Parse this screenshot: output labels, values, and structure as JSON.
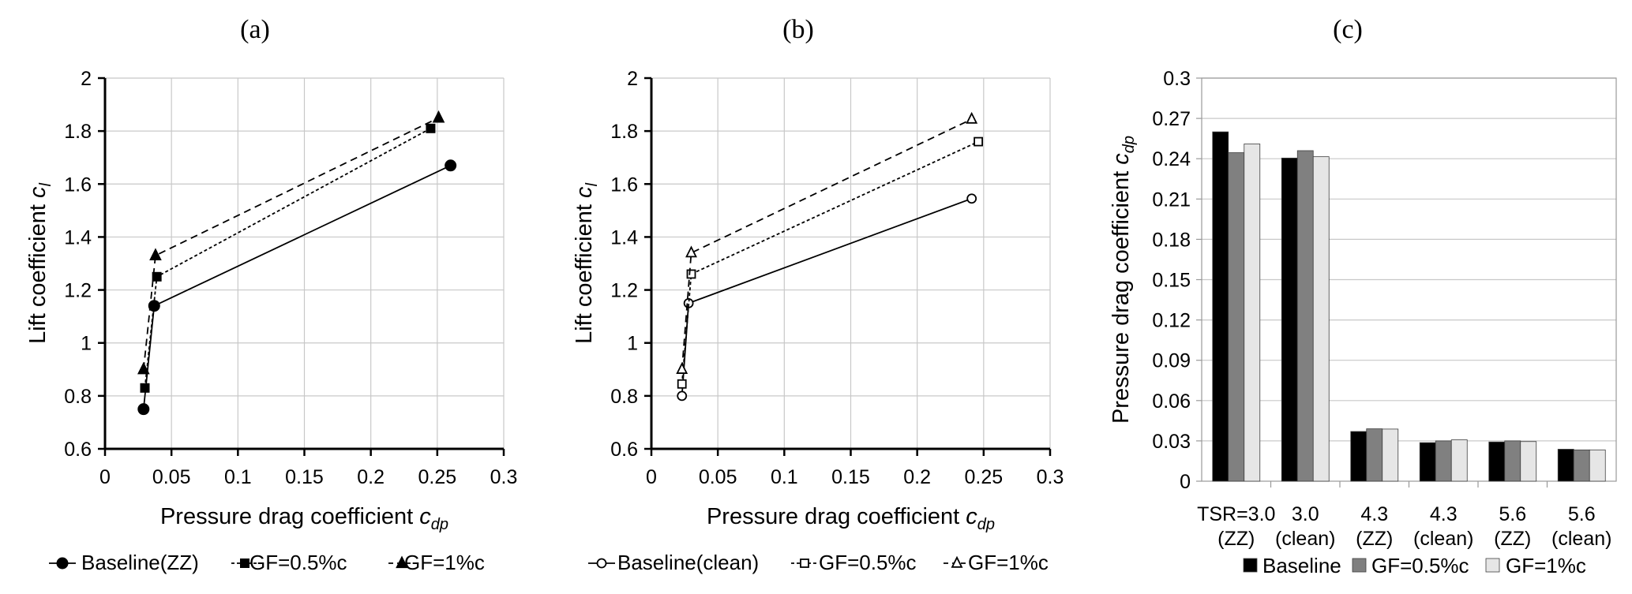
{
  "chart_data": [
    {
      "panel": "(a)",
      "type": "line",
      "xlabel": {
        "text": "Pressure drag coefficient ",
        "var": "c",
        "sub": "dp"
      },
      "ylabel": {
        "text": "Lift coefficient ",
        "var": "c",
        "sub": "l"
      },
      "xlim": [
        0,
        0.3
      ],
      "ylim": [
        0.6,
        2
      ],
      "xticks": [
        "0",
        "0.05",
        "0.1",
        "0.15",
        "0.2",
        "0.25",
        "0.3"
      ],
      "yticks": [
        "0.6",
        "0.8",
        "1",
        "1.2",
        "1.4",
        "1.6",
        "1.8",
        "2"
      ],
      "grid": true,
      "legend_position": "bottom",
      "series": [
        {
          "name": "Baseline(ZZ)",
          "marker": "circle-filled",
          "line": "solid",
          "x": [
            0.029,
            0.037,
            0.26
          ],
          "y": [
            0.75,
            1.14,
            1.67
          ]
        },
        {
          "name": "GF=0.5%c",
          "marker": "square-filled",
          "line": "dotted",
          "x": [
            0.03,
            0.039,
            0.245
          ],
          "y": [
            0.83,
            1.25,
            1.81
          ]
        },
        {
          "name": "GF=1%c",
          "marker": "triangle-filled",
          "line": "dashed",
          "x": [
            0.029,
            0.038,
            0.251
          ],
          "y": [
            0.9,
            1.33,
            1.85
          ]
        }
      ]
    },
    {
      "panel": "(b)",
      "type": "line",
      "xlabel": {
        "text": "Pressure drag coefficient ",
        "var": "c",
        "sub": "dp"
      },
      "ylabel": {
        "text": "Lift coefficient ",
        "var": "c",
        "sub": "l"
      },
      "xlim": [
        0,
        0.3
      ],
      "ylim": [
        0.6,
        2
      ],
      "xticks": [
        "0",
        "0.05",
        "0.1",
        "0.15",
        "0.2",
        "0.25",
        "0.3"
      ],
      "yticks": [
        "0.6",
        "0.8",
        "1",
        "1.2",
        "1.4",
        "1.6",
        "1.8",
        "2"
      ],
      "grid": true,
      "legend_position": "bottom",
      "series": [
        {
          "name": "Baseline(clean)",
          "marker": "circle-open",
          "line": "solid",
          "x": [
            0.023,
            0.028,
            0.241
          ],
          "y": [
            0.8,
            1.15,
            1.545
          ]
        },
        {
          "name": "GF=0.5%c",
          "marker": "square-open",
          "line": "dotted",
          "x": [
            0.023,
            0.03,
            0.246
          ],
          "y": [
            0.845,
            1.26,
            1.76
          ]
        },
        {
          "name": "GF=1%c",
          "marker": "triangle-open",
          "line": "dashed",
          "x": [
            0.023,
            0.03,
            0.241
          ],
          "y": [
            0.9,
            1.34,
            1.845
          ]
        }
      ]
    },
    {
      "panel": "(c)",
      "type": "bar",
      "ylabel": {
        "text": "Pressure drag coefficient ",
        "var": "c",
        "sub": "dp"
      },
      "ylim": [
        0,
        0.3
      ],
      "yticks": [
        "0",
        "0.03",
        "0.06",
        "0.09",
        "0.12",
        "0.15",
        "0.18",
        "0.21",
        "0.24",
        "0.27",
        "0.3"
      ],
      "grid": true,
      "legend_position": "bottom",
      "categories": [
        [
          "TSR=3.0",
          "(ZZ)"
        ],
        [
          "3.0",
          "(clean)"
        ],
        [
          "4.3",
          "(ZZ)"
        ],
        [
          "4.3",
          "(clean)"
        ],
        [
          "5.6",
          "(ZZ)"
        ],
        [
          "5.6",
          "(clean)"
        ]
      ],
      "series": [
        {
          "name": "Baseline",
          "color": "#000000",
          "values": [
            0.26,
            0.2405,
            0.037,
            0.0287,
            0.0292,
            0.0238
          ]
        },
        {
          "name": "GF=0.5%c",
          "color": "#808080",
          "values": [
            0.2445,
            0.246,
            0.039,
            0.03,
            0.03,
            0.0233
          ]
        },
        {
          "name": "GF=1%c",
          "color": "#e6e6e6",
          "values": [
            0.251,
            0.2415,
            0.0388,
            0.0308,
            0.0295,
            0.0233
          ]
        }
      ]
    }
  ]
}
